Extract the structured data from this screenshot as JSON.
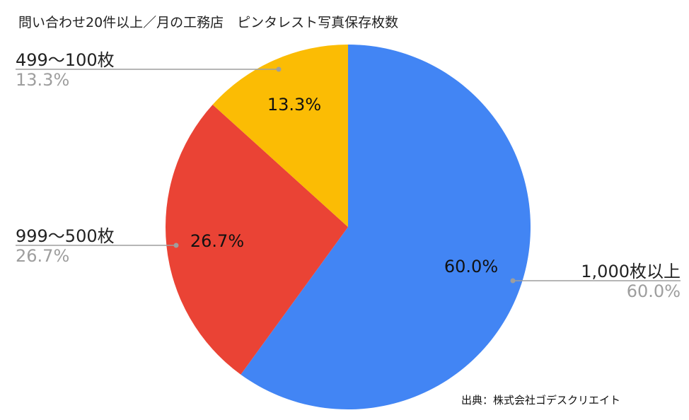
{
  "chart_data": {
    "type": "pie",
    "title": "問い合わせ20件以上／月の工務店　ピンタレスト写真保存枚数",
    "categories": [
      "1,000枚以上",
      "999〜500枚",
      "499〜100枚"
    ],
    "values": [
      60.0,
      26.7,
      13.3
    ],
    "slice_labels": [
      "60.0%",
      "26.7%",
      "13.3%"
    ],
    "legend_percent": [
      "60.0%",
      "26.7%",
      "13.3%"
    ],
    "colors": [
      "#4285f4",
      "#ea4335",
      "#fbbc04"
    ],
    "legend_placement": "outside-labels",
    "start_angle_deg": 0,
    "direction": "clockwise"
  },
  "source": "出典：株式会社ゴデスクリエイト"
}
